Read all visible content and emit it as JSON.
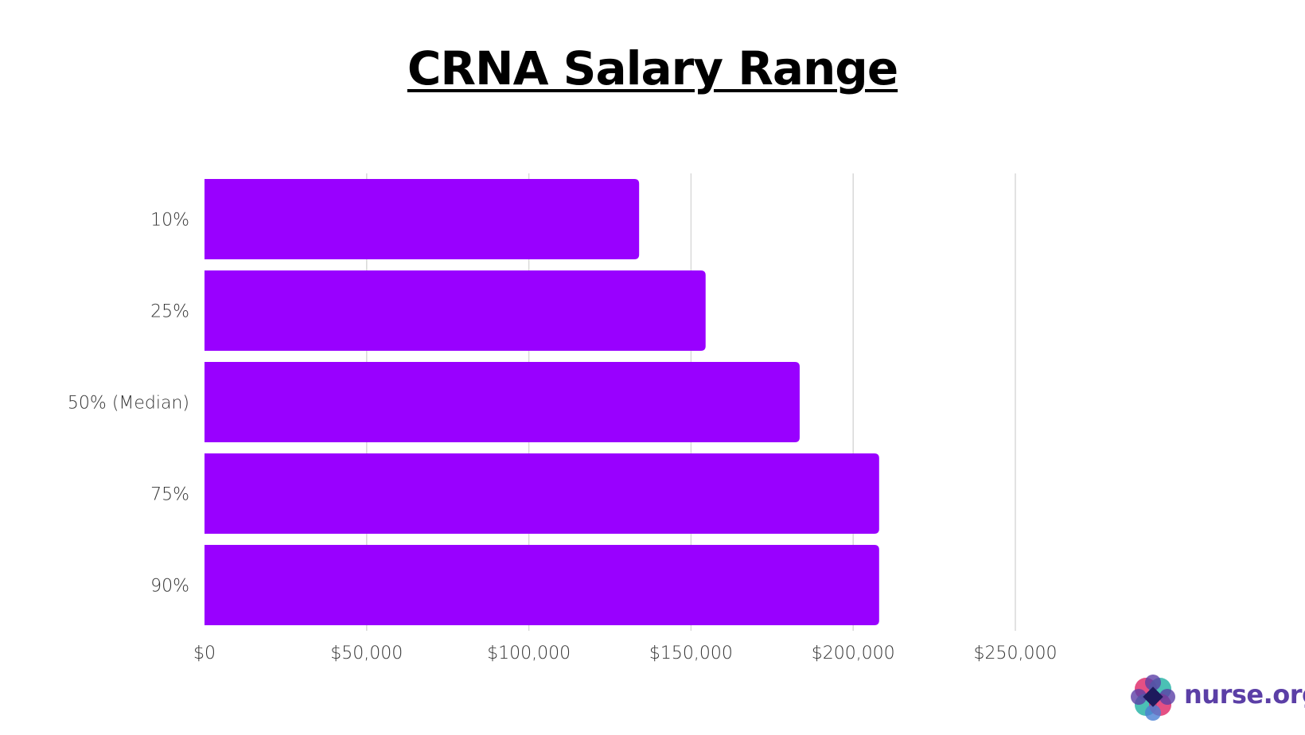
{
  "chart_data": {
    "type": "bar",
    "orientation": "horizontal",
    "title": "CRNA Salary Range",
    "categories": [
      "10%",
      "25%",
      "50% (Median)",
      "75%",
      "90%"
    ],
    "values": [
      134000,
      154500,
      183500,
      208000,
      208000
    ],
    "xlim": [
      0,
      270000
    ],
    "x_ticks": [
      0,
      50000,
      100000,
      150000,
      200000,
      250000
    ],
    "x_tick_labels": [
      "$0",
      "$50,000",
      "$100,000",
      "$150,000",
      "$200,000",
      "$250,000"
    ],
    "xlabel": "",
    "ylabel": "",
    "grid": "vertical",
    "bar_color": "#9900ff",
    "grid_color": "#d9d9d9"
  },
  "brand": {
    "name": "nurse.org",
    "text_color": "#5b3fa6",
    "icon": "nurse-org-logo-icon"
  }
}
